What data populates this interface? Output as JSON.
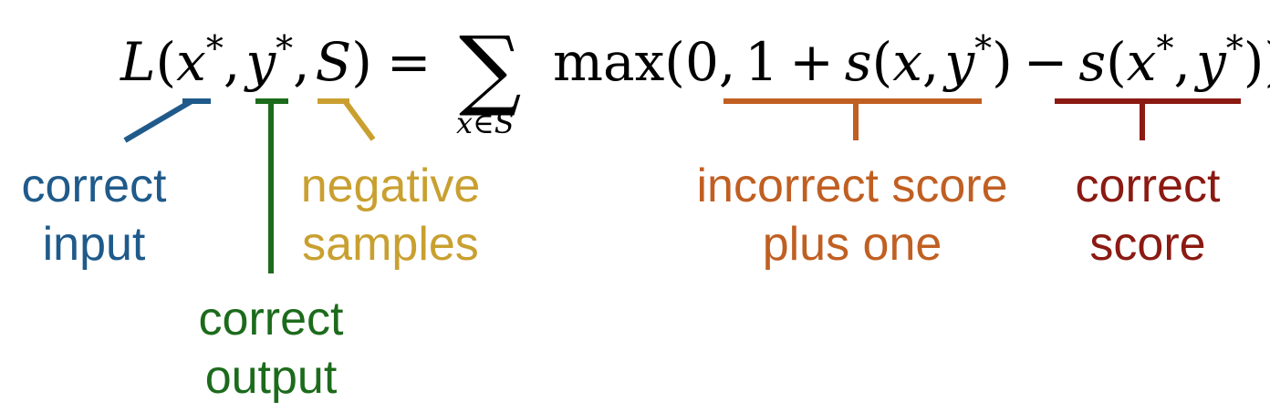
{
  "equation": {
    "lhs_fn": "L",
    "open_paren": "(",
    "x": "x",
    "star": "*",
    "comma": ",",
    "y": "y",
    "S": "S",
    "close_paren": ")",
    "equals": "=",
    "sigma": "∑",
    "sum_subscript": "x∈S",
    "max": "max",
    "zero": "0",
    "one": "1",
    "plus": "+",
    "minus": "−",
    "s": "s"
  },
  "annotations": {
    "correct_input": {
      "line1": "correct",
      "line2": "input",
      "color": "#1f5a8a"
    },
    "correct_output": {
      "line1": "correct",
      "line2": "output",
      "color": "#1c6b1c"
    },
    "negative_samples": {
      "line1": "negative",
      "line2": "samples",
      "color": "#c9a030"
    },
    "incorrect_score": {
      "line1": "incorrect score",
      "line2": "plus one",
      "color": "#c05f22"
    },
    "correct_score": {
      "line1": "correct",
      "line2": "score",
      "color": "#8b1a12"
    }
  }
}
